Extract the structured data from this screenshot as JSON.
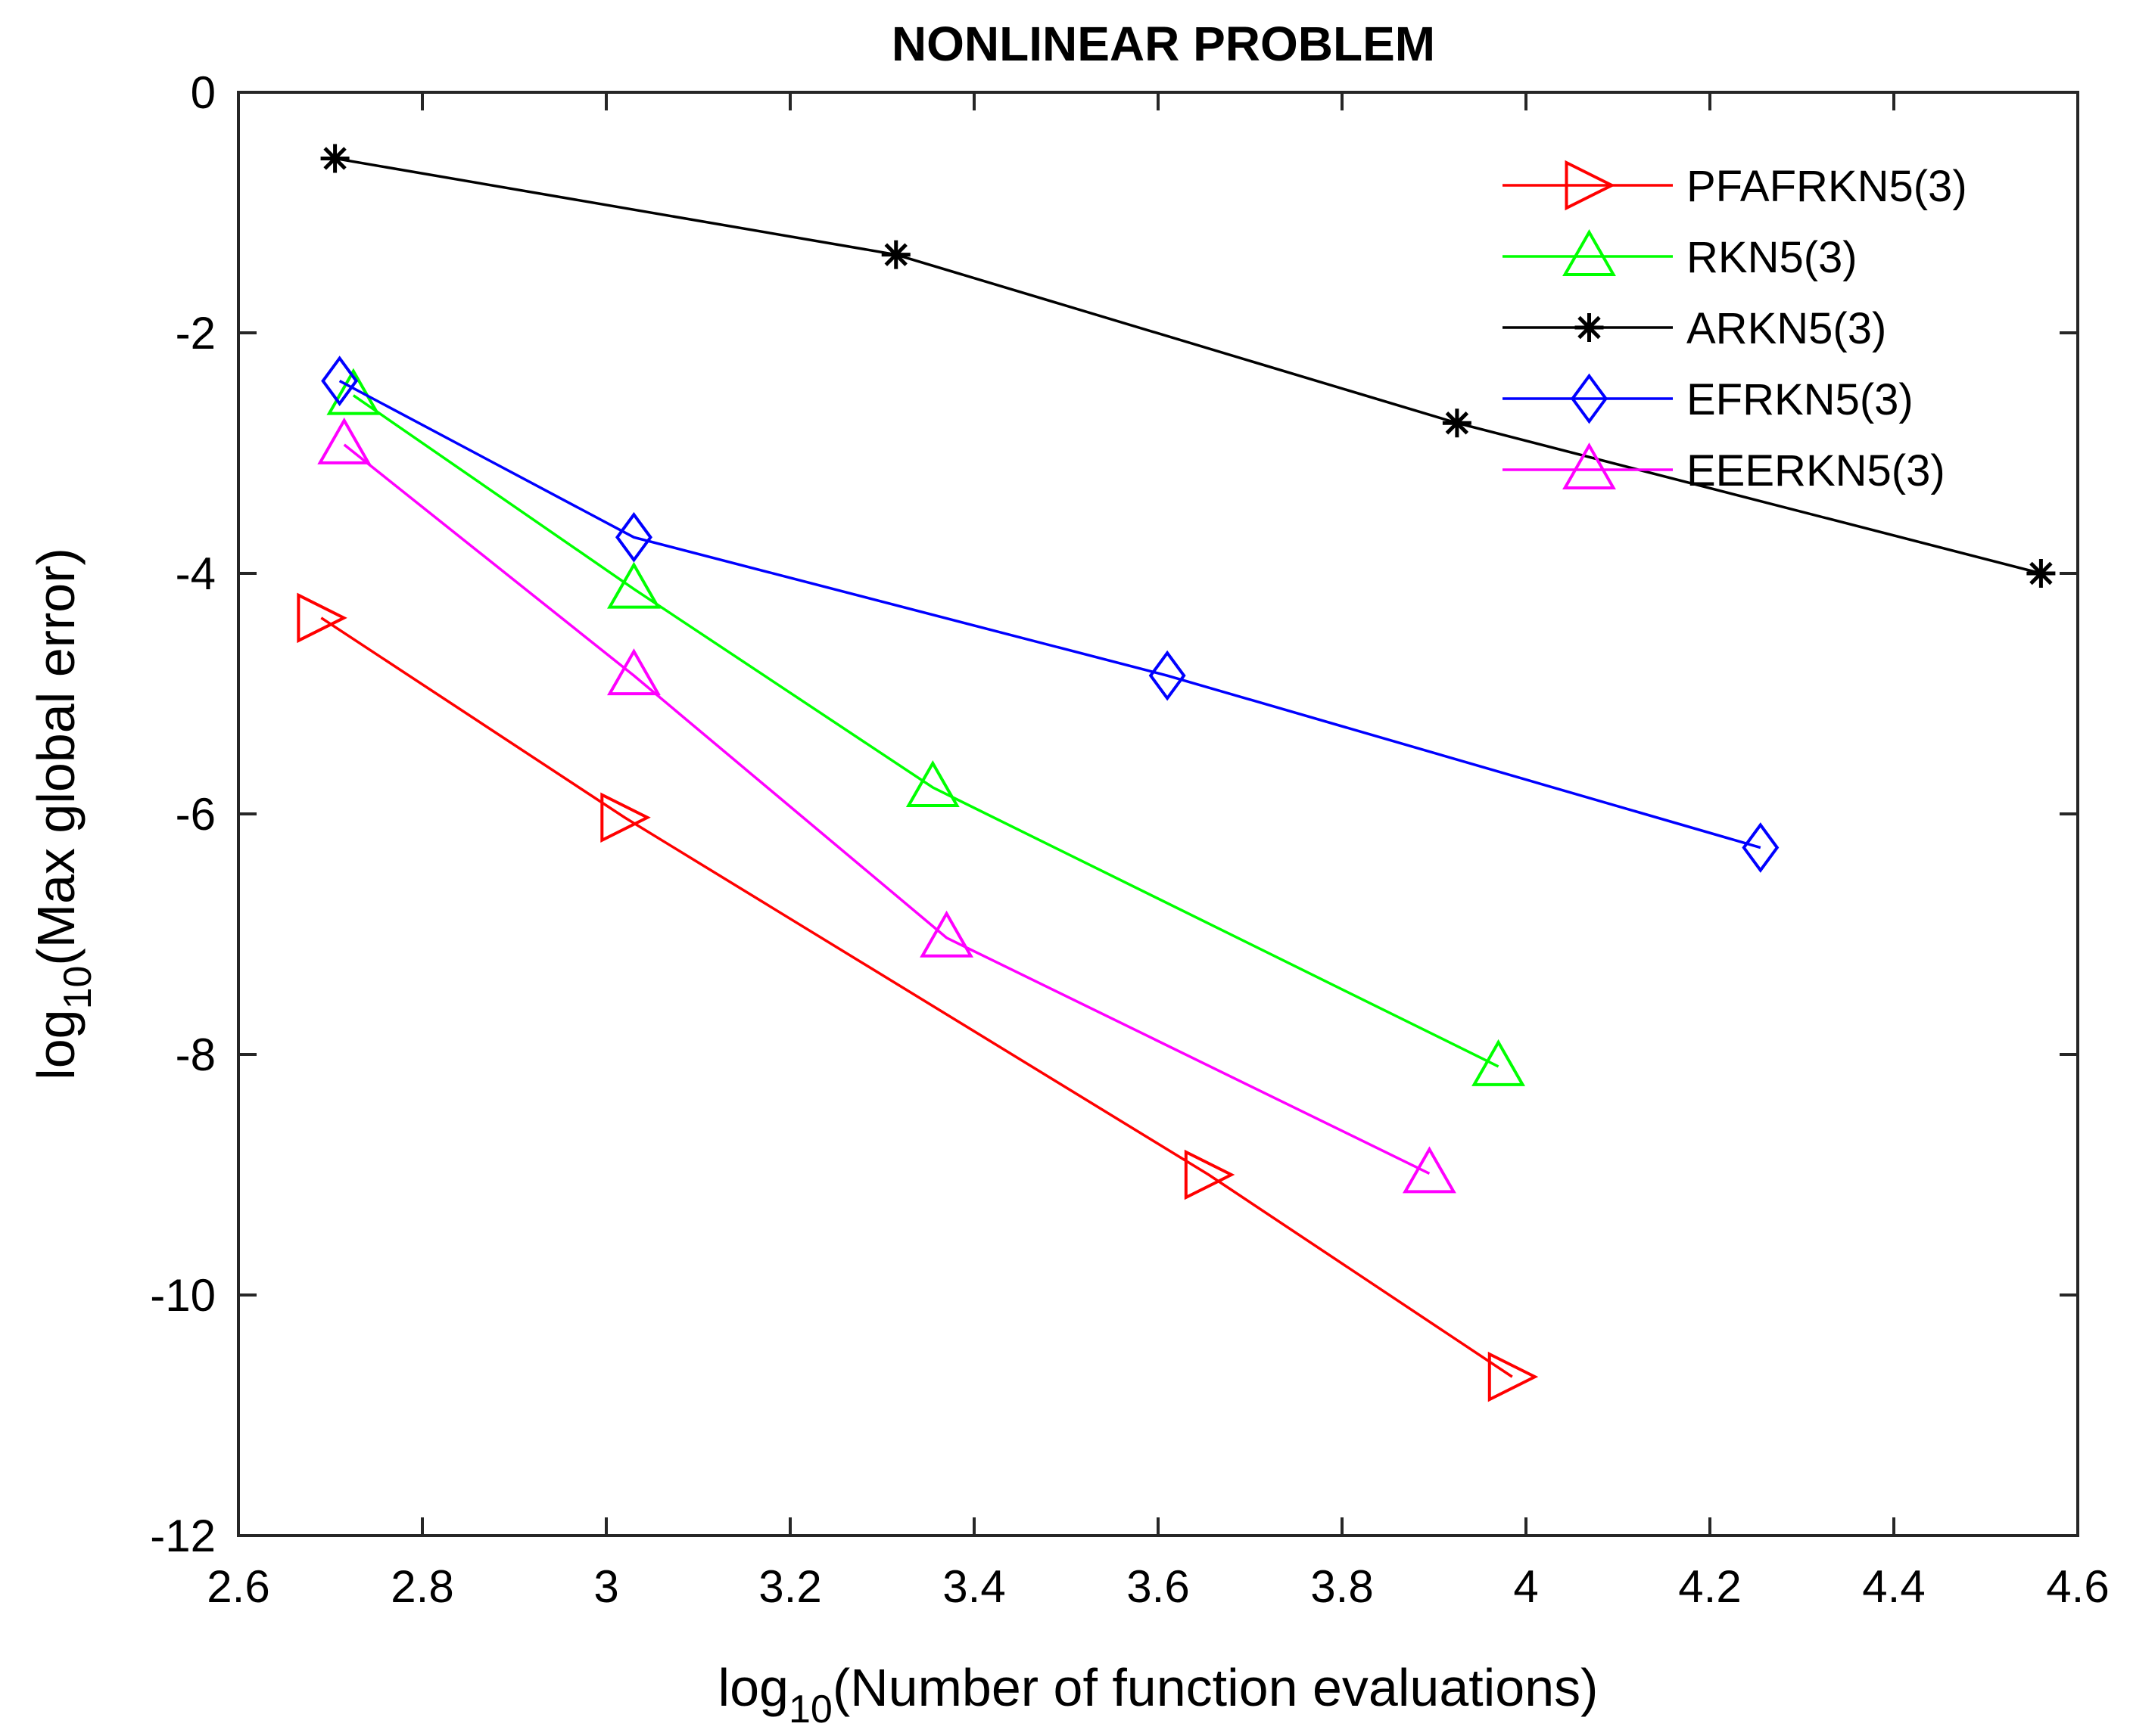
{
  "chart_data": {
    "type": "line",
    "title": "NONLINEAR PROBLEM",
    "xlabel": {
      "prefix": "log",
      "subscript": "10",
      "text": "(Number of function evaluations)"
    },
    "ylabel": {
      "prefix": "log",
      "subscript": "10",
      "text": "(Max global error)"
    },
    "xlim": [
      2.6,
      4.6
    ],
    "ylim": [
      -12,
      0
    ],
    "xticks": [
      "2.6",
      "2.8",
      "3",
      "3.2",
      "3.4",
      "3.6",
      "3.8",
      "4",
      "4.2",
      "4.4",
      "4.6"
    ],
    "yticks": [
      "0",
      "-2",
      "-4",
      "-6",
      "-8",
      "-10",
      "-12"
    ],
    "grid": false,
    "legend_position": "top-right",
    "series": [
      {
        "name": "PFAFRKN5(3)",
        "color": "#ff0000",
        "marker": "triangle-right",
        "x": [
          2.69,
          3.02,
          3.655,
          3.985
        ],
        "y": [
          -4.37,
          -6.03,
          -9.0,
          -10.68
        ]
      },
      {
        "name": "RKN5(3)",
        "color": "#00ff00",
        "marker": "triangle-up",
        "x": [
          2.725,
          3.03,
          3.355,
          3.97
        ],
        "y": [
          -2.52,
          -4.13,
          -5.78,
          -8.1
        ]
      },
      {
        "name": "ARKN5(3)",
        "color": "#000000",
        "marker": "asterisk",
        "x": [
          2.705,
          3.315,
          3.925,
          4.56
        ],
        "y": [
          -0.55,
          -1.35,
          -2.75,
          -4.0
        ]
      },
      {
        "name": "EFRKN5(3)",
        "color": "#0000ff",
        "marker": "diamond",
        "x": [
          2.71,
          3.03,
          3.61,
          4.255
        ],
        "y": [
          -2.4,
          -3.7,
          -4.85,
          -6.28
        ]
      },
      {
        "name": "EEERKN5(3)",
        "color": "#ff00ff",
        "marker": "triangle-up",
        "x": [
          2.715,
          3.03,
          3.37,
          3.895
        ],
        "y": [
          -2.93,
          -4.85,
          -7.03,
          -8.99
        ]
      }
    ]
  }
}
